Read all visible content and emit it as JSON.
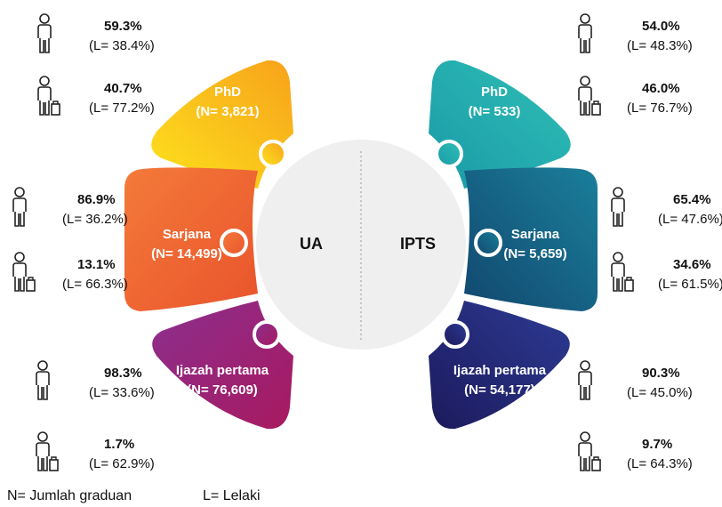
{
  "center": {
    "left": "UA",
    "right": "IPTS"
  },
  "left": [
    {
      "level": "PhD",
      "n": "(N= 3,821)",
      "stats": [
        {
          "pct": "59.3%",
          "l": "(L= 38.4%)"
        },
        {
          "pct": "40.7%",
          "l": "(L= 77.2%)"
        }
      ]
    },
    {
      "level": "Sarjana",
      "n": "(N= 14,499)",
      "stats": [
        {
          "pct": "86.9%",
          "l": "(L= 36.2%)"
        },
        {
          "pct": "13.1%",
          "l": "(L= 66.3%)"
        }
      ]
    },
    {
      "level": "Ijazah pertama",
      "n": "(N= 76,609)",
      "stats": [
        {
          "pct": "98.3%",
          "l": "(L= 33.6%)"
        },
        {
          "pct": "1.7%",
          "l": "(L= 62.9%)"
        }
      ]
    }
  ],
  "right": [
    {
      "level": "PhD",
      "n": "(N= 533)",
      "stats": [
        {
          "pct": "54.0%",
          "l": "(L= 48.3%)"
        },
        {
          "pct": "46.0%",
          "l": "(L= 76.7%)"
        }
      ]
    },
    {
      "level": "Sarjana",
      "n": "(N= 5,659)",
      "stats": [
        {
          "pct": "65.4%",
          "l": "(L= 47.6%)"
        },
        {
          "pct": "34.6%",
          "l": "(L= 61.5%)"
        }
      ]
    },
    {
      "level": "Ijazah pertama",
      "n": "(N= 54,177)",
      "stats": [
        {
          "pct": "90.3%",
          "l": "(L= 45.0%)"
        },
        {
          "pct": "9.7%",
          "l": "(L= 64.3%)"
        }
      ]
    }
  ],
  "legend": [
    "N= Jumlah graduan",
    "L= Lelaki"
  ]
}
